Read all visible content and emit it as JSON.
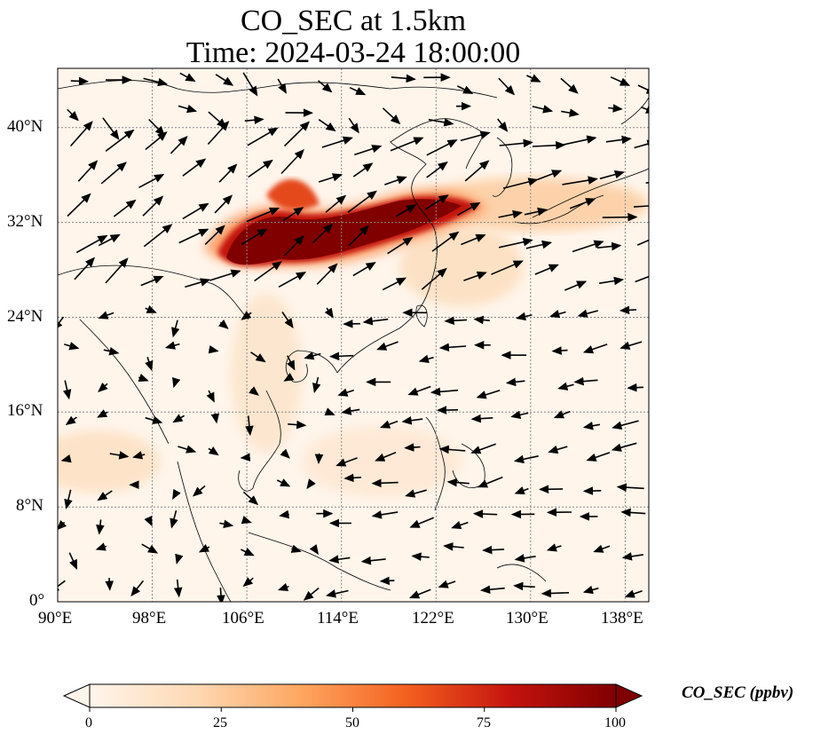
{
  "title": "CO_SEC at 1.5km",
  "subtitle": "Time: 2024-03-24 18:00:00",
  "map": {
    "region": "East & Southeast Asia",
    "lon_range": [
      90,
      140
    ],
    "lat_range": [
      0,
      45
    ],
    "gridlines": "dotted",
    "lon_ticks": [
      "90°E",
      "98°E",
      "106°E",
      "114°E",
      "122°E",
      "130°E",
      "138°E"
    ],
    "lat_ticks": [
      "0°",
      "8°N",
      "16°N",
      "24°N",
      "32°N",
      "40°N"
    ],
    "plume_description_color": "#8b0000",
    "background_color": "#fff5eb"
  },
  "colorbar": {
    "label": "CO_SEC (ppbv)",
    "ticks": [
      "0",
      "25",
      "50",
      "75",
      "100"
    ],
    "range": [
      0,
      100
    ],
    "extend": "both",
    "colors": [
      "#fff5eb",
      "#fdd9b4",
      "#fda761",
      "#f4611f",
      "#c4130e",
      "#7f0000"
    ]
  }
}
